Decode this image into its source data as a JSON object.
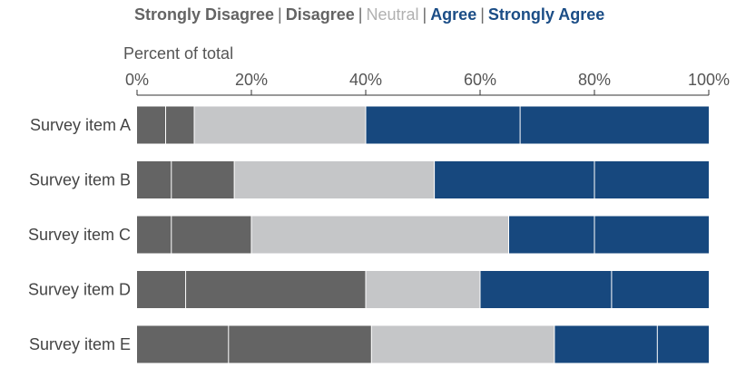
{
  "chart_data": {
    "type": "bar",
    "orientation": "horizontal",
    "stacked": true,
    "xlabel": "Percent of total",
    "xlim": [
      0,
      100
    ],
    "x_ticks": [
      "0%",
      "20%",
      "40%",
      "60%",
      "80%",
      "100%"
    ],
    "categories": [
      "Survey item A",
      "Survey item B",
      "Survey item C",
      "Survey item D",
      "Survey item E"
    ],
    "series": [
      {
        "name": "Strongly Disagree",
        "values": [
          5,
          6,
          6,
          8.5,
          16
        ]
      },
      {
        "name": "Disagree",
        "values": [
          5,
          11,
          14,
          31.5,
          25
        ]
      },
      {
        "name": "Neutral",
        "values": [
          30,
          35,
          45,
          20,
          32
        ]
      },
      {
        "name": "Agree",
        "values": [
          27,
          28,
          15,
          23,
          18
        ]
      },
      {
        "name": "Strongly Agree",
        "values": [
          33,
          20,
          20,
          17,
          9
        ]
      }
    ],
    "colors": [
      "#646464",
      "#646464",
      "#c5c6c8",
      "#17487e",
      "#17487e"
    ],
    "legend_position": "top",
    "legend_colors": [
      "#646464",
      "#646464",
      "#b0b0b0",
      "#1b4d86",
      "#1b4d86"
    ],
    "grid": false
  }
}
